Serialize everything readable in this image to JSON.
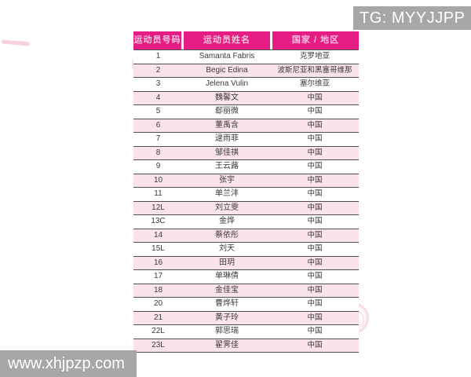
{
  "overlays": {
    "top_right_label": "TG: MYYJJPP",
    "bottom_left_label": "www.xhjpzp.com"
  },
  "table": {
    "headers": [
      "运动员号码",
      "运动员姓名",
      "国家 / 地区"
    ],
    "rows": [
      {
        "number": "1",
        "name": "Samanta Fabris",
        "country": "克罗地亚"
      },
      {
        "number": "2",
        "name": "Begic Edina",
        "country": "波斯尼亚和黑塞哥维那"
      },
      {
        "number": "3",
        "name": "Jelena Vulin",
        "country": "塞尔维亚"
      },
      {
        "number": "4",
        "name": "魏馨文",
        "country": "中国"
      },
      {
        "number": "5",
        "name": "郄丽微",
        "country": "中国"
      },
      {
        "number": "6",
        "name": "董禹含",
        "country": "中国"
      },
      {
        "number": "7",
        "name": "逯雨菲",
        "country": "中国"
      },
      {
        "number": "8",
        "name": "邹佳祺",
        "country": "中国"
      },
      {
        "number": "9",
        "name": "王云蕗",
        "country": "中国"
      },
      {
        "number": "10",
        "name": "张宇",
        "country": "中国"
      },
      {
        "number": "11",
        "name": "单兰沣",
        "country": "中国"
      },
      {
        "number": "12L",
        "name": "刘立雯",
        "country": "中国"
      },
      {
        "number": "13C",
        "name": "金烨",
        "country": "中国"
      },
      {
        "number": "14",
        "name": "蔡依彤",
        "country": "中国"
      },
      {
        "number": "15L",
        "name": "刘天",
        "country": "中国"
      },
      {
        "number": "16",
        "name": "田玥",
        "country": "中国"
      },
      {
        "number": "17",
        "name": "单琳倩",
        "country": "中国"
      },
      {
        "number": "18",
        "name": "金佳宝",
        "country": "中国"
      },
      {
        "number": "20",
        "name": "曹烨轩",
        "country": "中国"
      },
      {
        "number": "21",
        "name": "黄子玲",
        "country": "中国"
      },
      {
        "number": "22L",
        "name": "郭思瑞",
        "country": "中国"
      },
      {
        "number": "23L",
        "name": "翟霁佳",
        "country": "中国"
      }
    ]
  },
  "colors": {
    "header_bg": "#e41c84",
    "header_text": "#f7c5db",
    "row_alt_bg": "#fbe3ee",
    "row_separator": "#4f4f4f",
    "overlay_gray": "#a0a0a0",
    "watermark_pink": "#e98cb4"
  }
}
